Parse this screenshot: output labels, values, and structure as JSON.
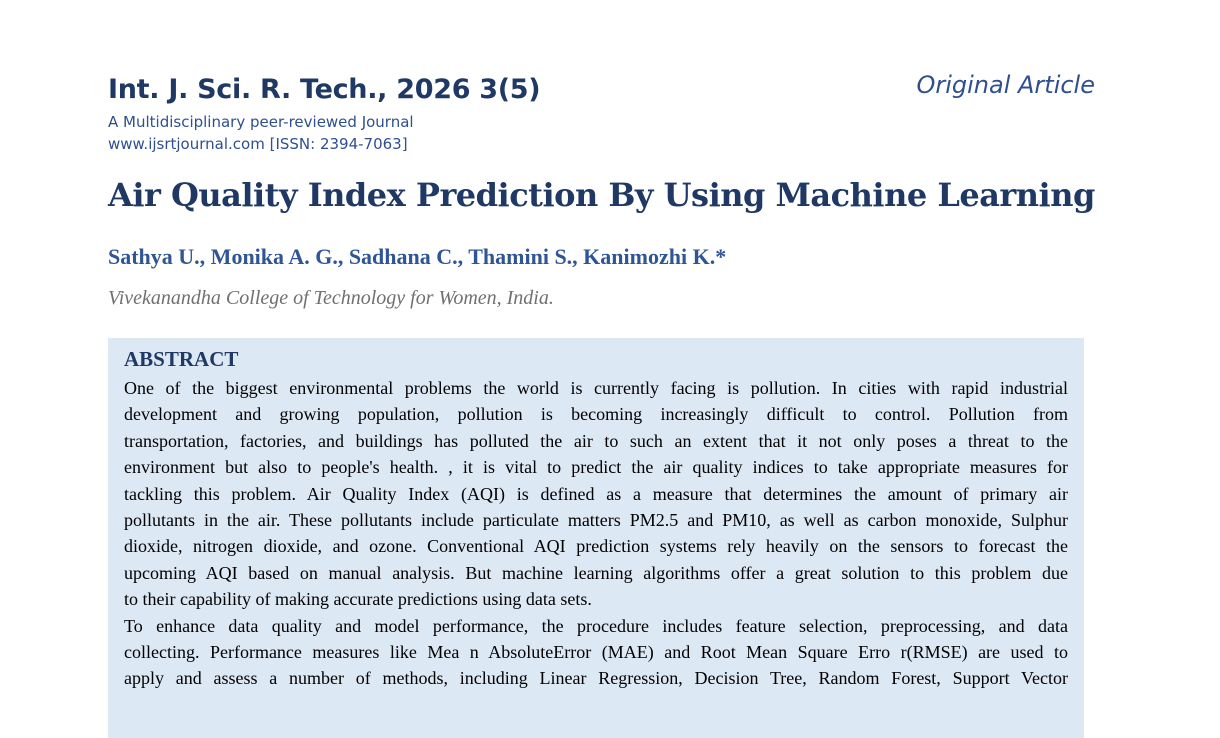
{
  "header": {
    "journal": "Int. J. Sci. R. Tech., 2026 3(5)",
    "tagline": "A Multidisciplinary peer-reviewed Journal",
    "website": "www.ijsrtjournal.com [ISSN: 2394-7063]",
    "article_type": "Original Article"
  },
  "article": {
    "title": "Air Quality Index Prediction By Using Machine Learning",
    "authors": "Sathya U., Monika A. G., Sadhana C., Thamini S., Kanimozhi K.*",
    "affiliation": "Vivekanandha College of Technology for Women, India."
  },
  "abstract": {
    "heading": "ABSTRACT",
    "paragraphs": [
      [
        "One of the biggest environmental problems the world is currently facing is pollution. In cities with rapid industrial",
        "development and growing population, pollution is becoming increasingly difficult to control. Pollution from",
        "transportation, factories, and buildings has polluted the air to such an extent that it not only poses a threat to the",
        "environment but also to people's health. , it is vital to predict the air quality indices to take appropriate measures for",
        "tackling this problem. Air Quality Index (AQI) is defined as a measure that determines the amount of primary air",
        "pollutants in the air. These pollutants include particulate matters PM2.5 and PM10, as well as carbon monoxide, Sulphur",
        "dioxide, nitrogen dioxide, and ozone. Conventional AQI prediction systems rely heavily on the sensors to forecast the",
        "upcoming AQI based on manual analysis. But machine learning algorithms offer a great solution to this problem due",
        "to their capability of making accurate predictions using data sets."
      ],
      [
        "To enhance data quality and model performance, the procedure includes feature selection, preprocessing, and data",
        "collecting. Performance measures like Mea n AbsoluteError (MAE) and Root Mean Square Erro r(RMSE) are used to",
        "apply and assess a number of methods, including Linear Regression, Decision Tree, Random Forest, Support Vector"
      ]
    ]
  }
}
